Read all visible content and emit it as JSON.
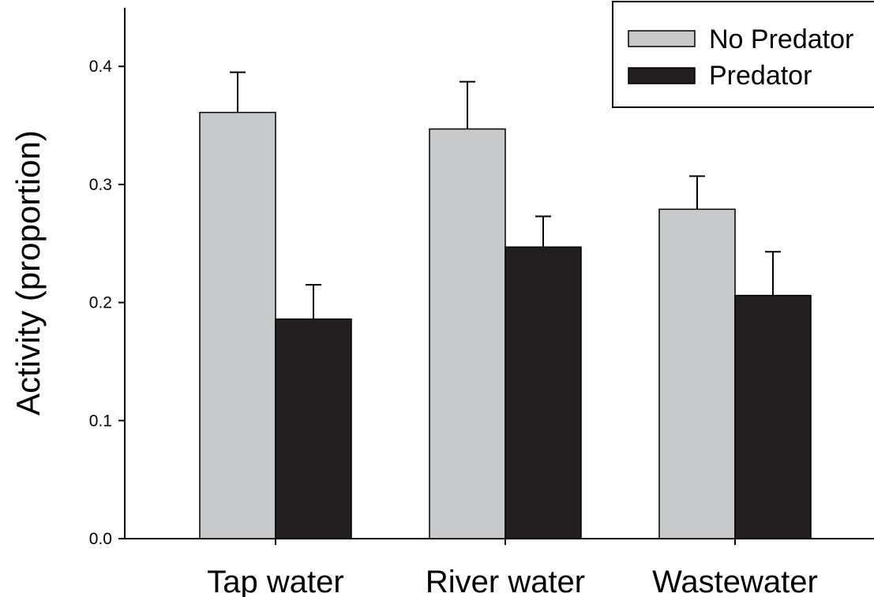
{
  "chart_data": {
    "type": "bar",
    "title": "",
    "xlabel": "",
    "ylabel": "Activity (proportion)",
    "categories": [
      "Tap water",
      "River water",
      "Wastewater"
    ],
    "series": [
      {
        "name": "No Predator",
        "values": [
          0.361,
          0.347,
          0.279
        ],
        "errors": [
          0.034,
          0.04,
          0.028
        ],
        "color": "#c8c9cb"
      },
      {
        "name": "Predator",
        "values": [
          0.186,
          0.247,
          0.206
        ],
        "errors": [
          0.029,
          0.026,
          0.037
        ],
        "color": "#231f20"
      }
    ],
    "ylim": [
      0,
      0.45
    ],
    "yticks": [
      0.0,
      0.1,
      0.2,
      0.3,
      0.4
    ],
    "ytick_labels": [
      "0.0",
      "0.1",
      "0.2",
      "0.3",
      "0.4"
    ],
    "legend_position": "top-right",
    "grid": false
  }
}
